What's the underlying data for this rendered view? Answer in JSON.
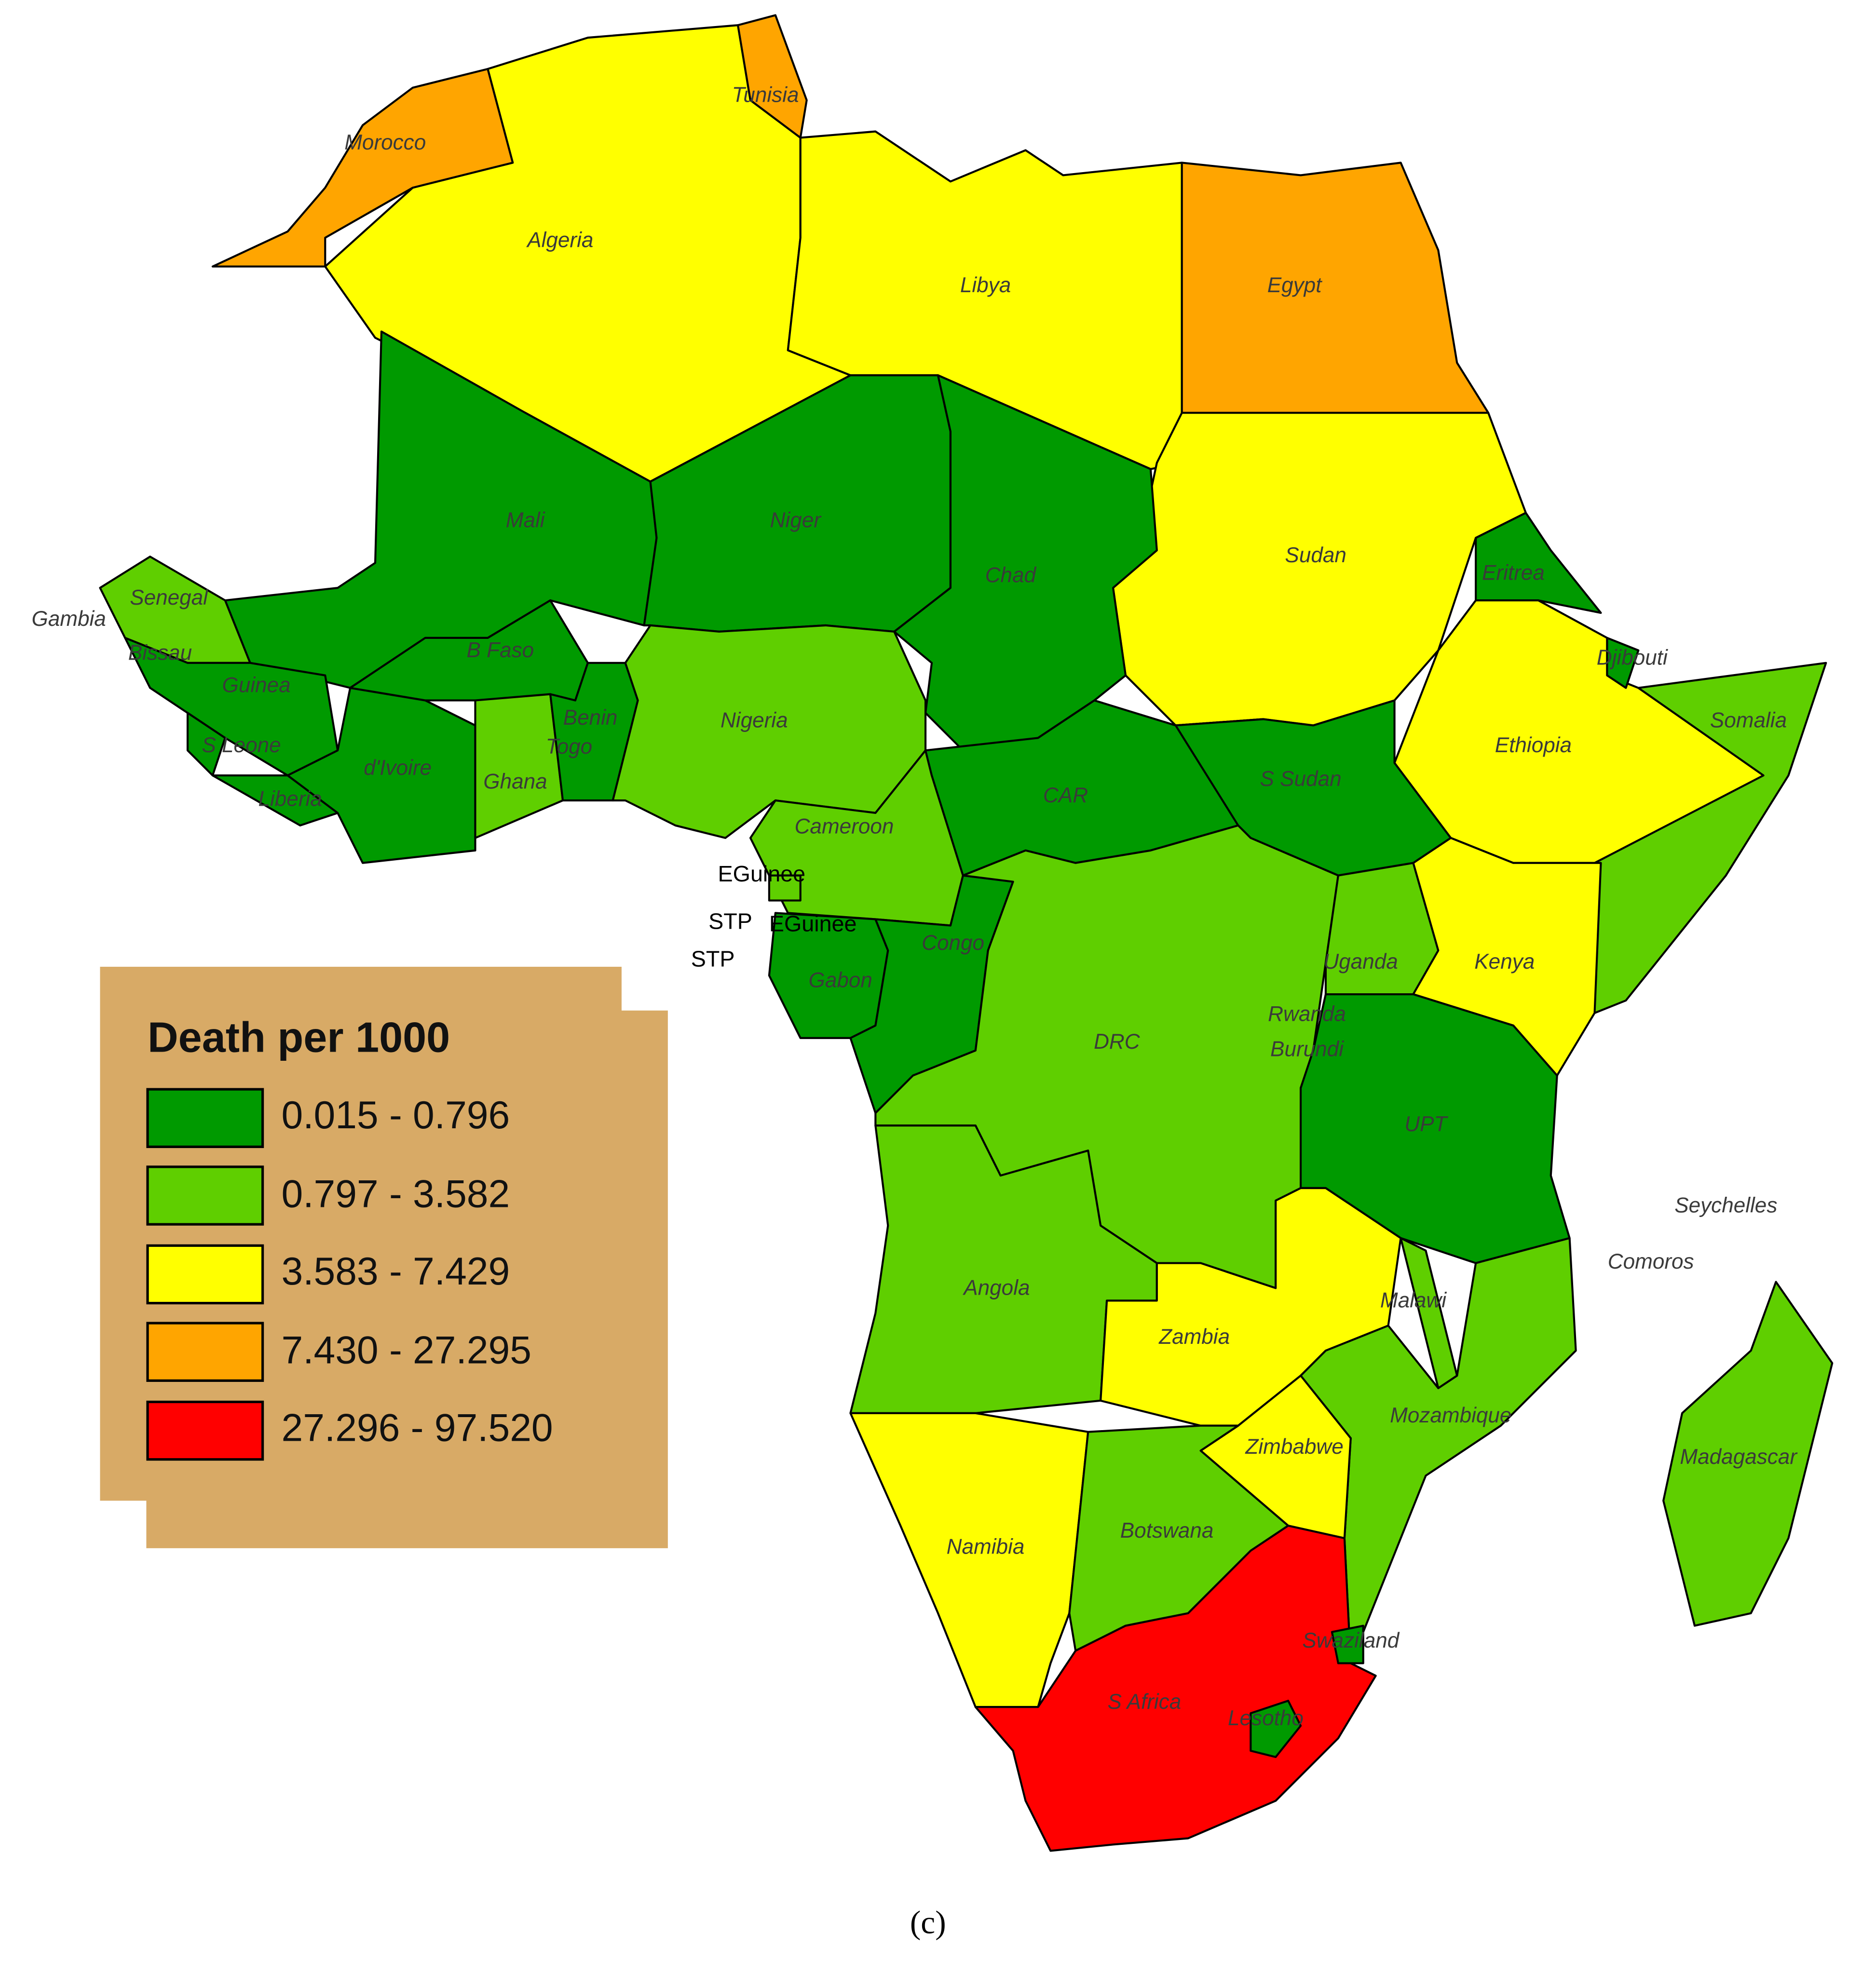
{
  "legend": {
    "title": "Death per 1000",
    "classes": [
      {
        "label": "0.015 - 0.796",
        "color": "#009a00"
      },
      {
        "label": "0.797 - 3.582",
        "color": "#5fcf00"
      },
      {
        "label": "3.583 - 7.429",
        "color": "#ffff00"
      },
      {
        "label": "7.430 - 27.295",
        "color": "#ffa500"
      },
      {
        "label": "27.296 - 97.520",
        "color": "#ff0000"
      }
    ]
  },
  "regions": [
    {
      "name": "Morocco",
      "color": "#ffa500"
    },
    {
      "name": "Tunisia",
      "color": "#ffa500"
    },
    {
      "name": "Algeria",
      "color": "#ffff00"
    },
    {
      "name": "Libya",
      "color": "#ffff00"
    },
    {
      "name": "Egypt",
      "color": "#ffa500"
    },
    {
      "name": "Mali",
      "color": "#009a00"
    },
    {
      "name": "Niger",
      "color": "#009a00"
    },
    {
      "name": "Chad",
      "color": "#009a00"
    },
    {
      "name": "Sudan",
      "color": "#ffff00"
    },
    {
      "name": "Eritrea",
      "color": "#009a00"
    },
    {
      "name": "Djibouti",
      "color": "#009a00"
    },
    {
      "name": "Senegal",
      "color": "#5fcf00"
    },
    {
      "name": "Gambia"
    },
    {
      "name": "Bissau"
    },
    {
      "name": "Guinea",
      "color": "#009a00"
    },
    {
      "name": "B Faso",
      "color": "#009a00"
    },
    {
      "name": "Benin",
      "color": "#009a00"
    },
    {
      "name": "Togo"
    },
    {
      "name": "Nigeria",
      "color": "#5fcf00"
    },
    {
      "name": "S Leone",
      "color": "#009a00"
    },
    {
      "name": "Liberia",
      "color": "#009a00"
    },
    {
      "name": "d'Ivoire",
      "color": "#009a00"
    },
    {
      "name": "Ghana",
      "color": "#5fcf00"
    },
    {
      "name": "Somalia",
      "color": "#5fcf00"
    },
    {
      "name": "Ethiopia",
      "color": "#ffff00"
    },
    {
      "name": "S Sudan",
      "color": "#009a00"
    },
    {
      "name": "CAR",
      "color": "#009a00"
    },
    {
      "name": "Cameroon",
      "color": "#5fcf00"
    },
    {
      "name": "EGuinee",
      "color": "#5fcf00"
    },
    {
      "name": "STP"
    },
    {
      "name": "EGuinee"
    },
    {
      "name": "STP"
    },
    {
      "name": "Gabon",
      "color": "#009a00"
    },
    {
      "name": "Congo",
      "color": "#009a00"
    },
    {
      "name": "Uganda",
      "color": "#5fcf00"
    },
    {
      "name": "Kenya",
      "color": "#ffff00"
    },
    {
      "name": "DRC",
      "color": "#5fcf00"
    },
    {
      "name": "Rwanda"
    },
    {
      "name": "Burundi"
    },
    {
      "name": "UPT",
      "color": "#009a00"
    },
    {
      "name": "Seychelles"
    },
    {
      "name": "Comoros"
    },
    {
      "name": "Angola",
      "color": "#5fcf00"
    },
    {
      "name": "Malawi",
      "color": "#5fcf00"
    },
    {
      "name": "Zambia",
      "color": "#ffff00"
    },
    {
      "name": "Mozambique",
      "color": "#5fcf00"
    },
    {
      "name": "Madagascar",
      "color": "#5fcf00"
    },
    {
      "name": "Zimbabwe",
      "color": "#ffff00"
    },
    {
      "name": "Botswana",
      "color": "#5fcf00"
    },
    {
      "name": "Namibia",
      "color": "#ffff00"
    },
    {
      "name": "Swaziland",
      "color": "#009a00"
    },
    {
      "name": "S Africa",
      "color": "#ff0000"
    },
    {
      "name": "Lesotho",
      "color": "#009a00"
    }
  ],
  "caption": "(c)"
}
